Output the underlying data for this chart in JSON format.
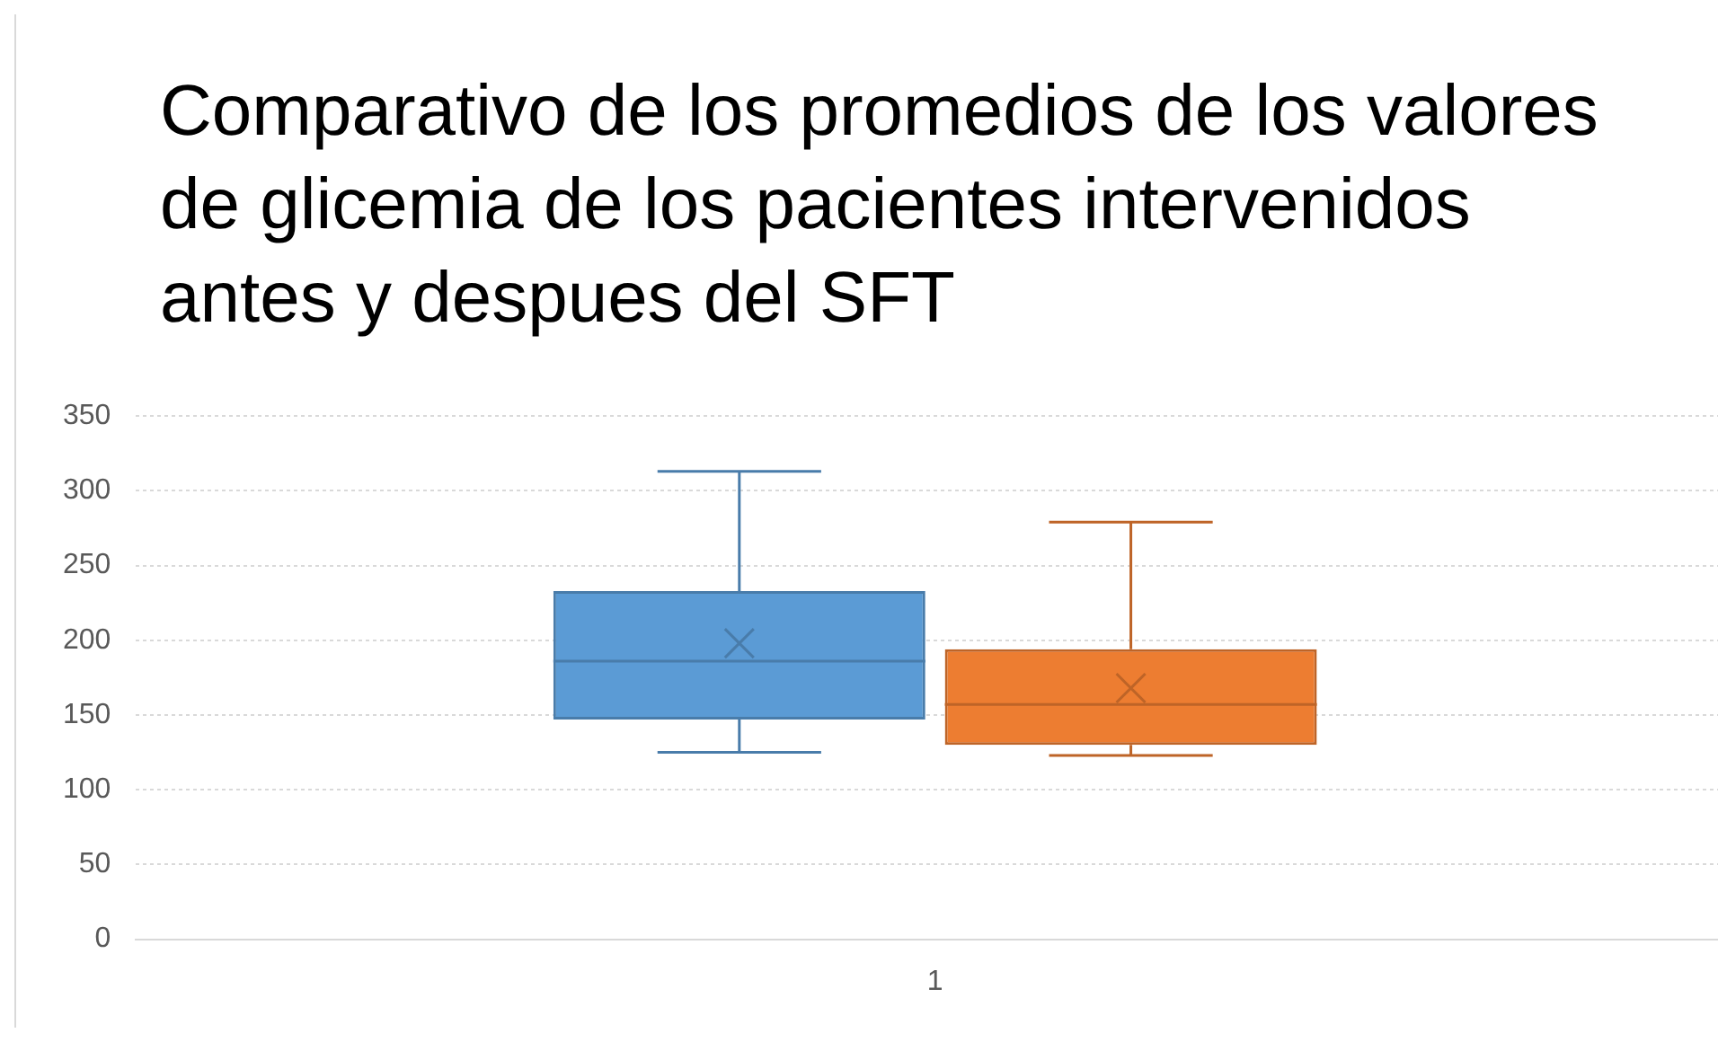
{
  "chart_data": {
    "type": "box",
    "title": "Comparativo de los promedios de los valores de glicemia de los pacientes intervenidos antes y despues del SFT",
    "categories": [
      "1"
    ],
    "series": [
      {
        "color": "#5b9bd5",
        "boxes": [
          {
            "low": 125,
            "q1": 147,
            "median": 186,
            "q3": 233,
            "high": 313,
            "mean": 198
          }
        ]
      },
      {
        "color": "#ed7d31",
        "boxes": [
          {
            "low": 123,
            "q1": 130,
            "median": 157,
            "q3": 194,
            "high": 279,
            "mean": 168
          }
        ]
      }
    ],
    "ylim": [
      0,
      350
    ],
    "yticks": [
      0,
      50,
      100,
      150,
      200,
      250,
      300,
      350
    ],
    "grid": "y",
    "marker": "cross"
  }
}
